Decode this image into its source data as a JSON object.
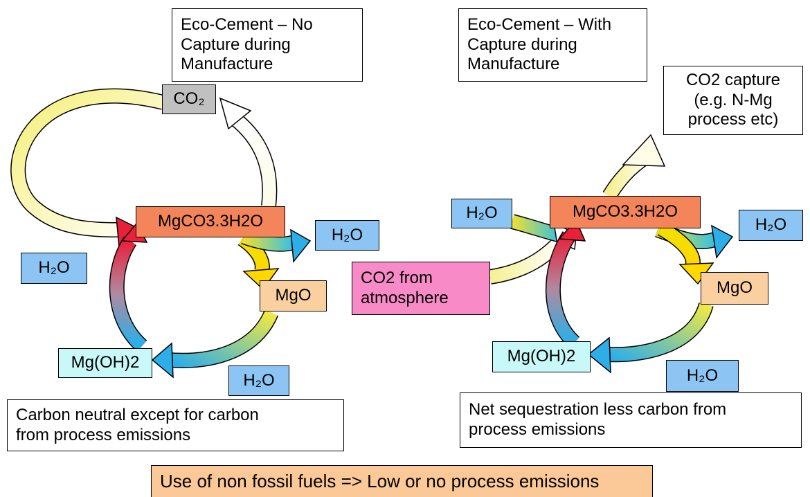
{
  "nodes": [
    {
      "lines": [
        "Eco-Cement – No",
        "Capture during",
        "Manufacture"
      ]
    },
    {
      "lines": [
        "CO₂"
      ]
    },
    {
      "lines": [
        "MgCO3.3H2O"
      ]
    },
    {
      "lines": [
        "H₂O"
      ]
    },
    {
      "lines": [
        "H₂O"
      ]
    },
    {
      "lines": [
        "MgO"
      ]
    },
    {
      "lines": [
        "Mg(OH)2"
      ]
    },
    {
      "lines": [
        "H₂O"
      ]
    },
    {
      "lines": [
        "Carbon neutral except for carbon",
        "from process emissions"
      ]
    },
    {
      "lines": [
        "Eco-Cement – With",
        "Capture during",
        "Manufacture"
      ]
    },
    {
      "lines": [
        "CO2 capture",
        "(e.g. N-Mg",
        "process etc)"
      ]
    },
    {
      "lines": [
        "H₂O"
      ]
    },
    {
      "lines": [
        "MgCO3.3H2O"
      ]
    },
    {
      "lines": [
        "H₂O"
      ]
    },
    {
      "lines": [
        "CO2 from",
        "atmosphere"
      ]
    },
    {
      "lines": [
        "MgO"
      ]
    },
    {
      "lines": [
        "Mg(OH)2"
      ]
    },
    {
      "lines": [
        "H₂O"
      ]
    },
    {
      "lines": [
        "Net sequestration less carbon from",
        "process emissions"
      ]
    },
    {
      "lines": [
        "Use of non fossil fuels => Low or no process emissions"
      ]
    }
  ]
}
